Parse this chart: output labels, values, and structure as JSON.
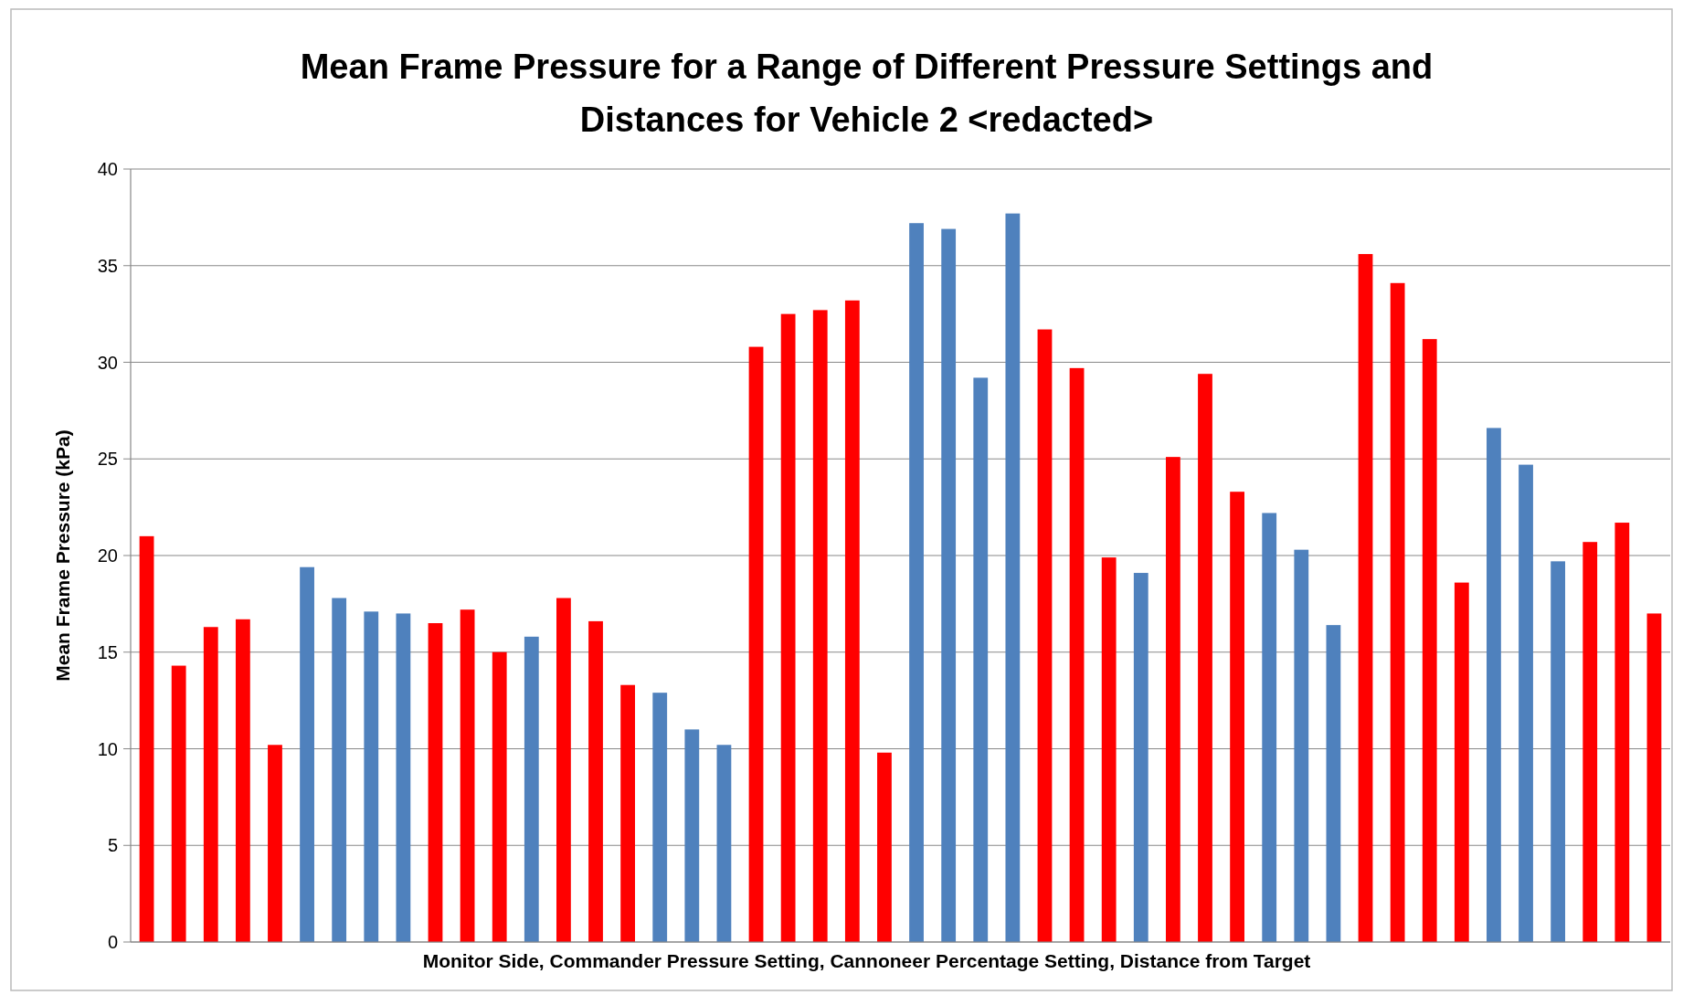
{
  "chart_data": {
    "type": "bar",
    "title": "Mean Frame Pressure  for a Range of Different Pressure Settings and Distances for Vehicle 2 <redacted>",
    "xlabel": "Monitor Side, Commander Pressure Setting, Cannoneer Percentage Setting, Distance from Target",
    "ylabel": "Mean Frame Pressure (kPa)",
    "categories": [
      null,
      null,
      null,
      null,
      null,
      null,
      null,
      null,
      null,
      null,
      null,
      null,
      null,
      null,
      null,
      null,
      null,
      null,
      null,
      null,
      null,
      null,
      null,
      null,
      null,
      null,
      null,
      null,
      null,
      null,
      null,
      null,
      null,
      null,
      null,
      null,
      null,
      null,
      null,
      null,
      null,
      null,
      null,
      null,
      null,
      null,
      null,
      null
    ],
    "values": [
      21.0,
      14.3,
      16.3,
      16.7,
      10.2,
      19.4,
      17.8,
      17.1,
      17.0,
      16.5,
      17.2,
      15.0,
      15.8,
      17.8,
      16.6,
      13.3,
      12.9,
      11.0,
      10.2,
      30.8,
      32.5,
      32.7,
      33.2,
      9.8,
      37.2,
      36.9,
      29.2,
      37.7,
      31.7,
      29.7,
      19.9,
      19.1,
      25.1,
      29.4,
      23.3,
      22.2,
      20.3,
      16.4,
      35.6,
      34.1,
      31.2,
      18.6,
      26.6,
      24.7,
      19.7,
      20.7,
      21.7,
      17.0
    ],
    "colors": [
      "#ff0000",
      "#ff0000",
      "#ff0000",
      "#ff0000",
      "#ff0000",
      "#4f81bd",
      "#4f81bd",
      "#4f81bd",
      "#4f81bd",
      "#ff0000",
      "#ff0000",
      "#ff0000",
      "#4f81bd",
      "#ff0000",
      "#ff0000",
      "#ff0000",
      "#4f81bd",
      "#4f81bd",
      "#4f81bd",
      "#ff0000",
      "#ff0000",
      "#ff0000",
      "#ff0000",
      "#ff0000",
      "#4f81bd",
      "#4f81bd",
      "#4f81bd",
      "#4f81bd",
      "#ff0000",
      "#ff0000",
      "#ff0000",
      "#4f81bd",
      "#ff0000",
      "#ff0000",
      "#ff0000",
      "#4f81bd",
      "#4f81bd",
      "#4f81bd",
      "#ff0000",
      "#ff0000",
      "#ff0000",
      "#ff0000",
      "#4f81bd",
      "#4f81bd",
      "#4f81bd",
      "#ff0000",
      "#ff0000",
      "#ff0000"
    ],
    "ylim": [
      0,
      40
    ],
    "yticks": [
      0,
      5,
      10,
      15,
      20,
      25,
      30,
      35,
      40
    ],
    "grid": "y"
  }
}
